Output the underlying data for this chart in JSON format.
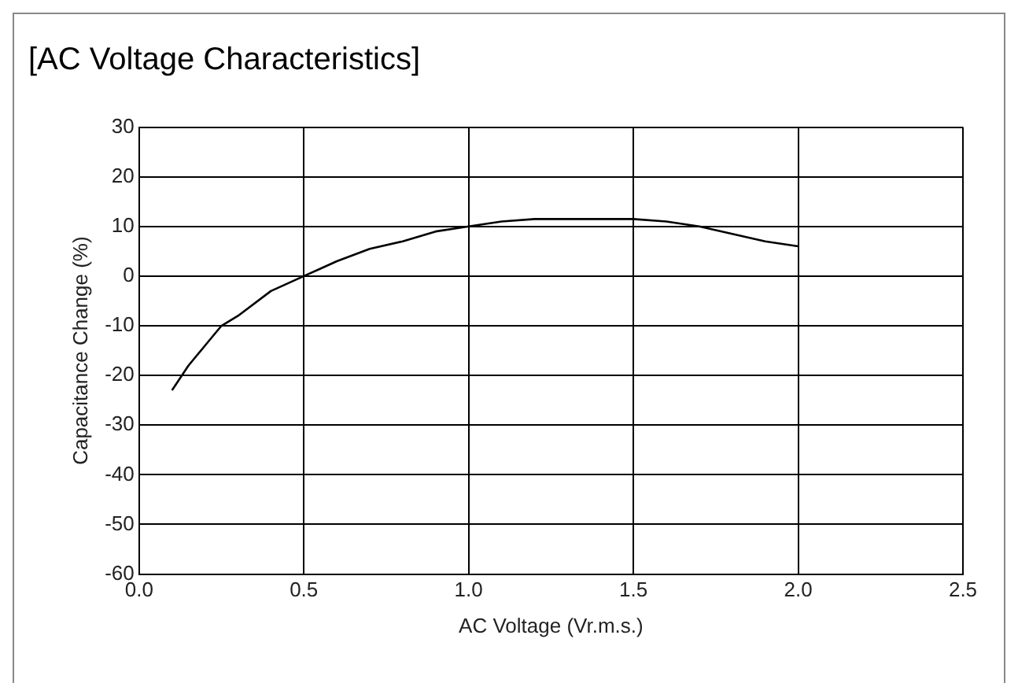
{
  "chart_data": {
    "type": "line",
    "title": "[AC Voltage Characteristics]",
    "xlabel": "AC Voltage (Vr.m.s.)",
    "ylabel": "Capacitance Change (%)",
    "x": [
      0.1,
      0.15,
      0.2,
      0.25,
      0.3,
      0.4,
      0.5,
      0.55,
      0.6,
      0.7,
      0.8,
      0.9,
      1.0,
      1.1,
      1.2,
      1.3,
      1.4,
      1.5,
      1.6,
      1.7,
      1.8,
      1.9,
      2.0
    ],
    "series": [
      {
        "color": "#000000",
        "values": [
          -23,
          -18,
          -14,
          -10,
          -8,
          -3,
          0,
          1.5,
          3,
          5.5,
          7,
          9,
          10,
          11,
          11.5,
          11.5,
          11.5,
          11.5,
          11,
          10,
          8.5,
          7,
          6
        ]
      }
    ],
    "xlim": [
      0,
      2.5
    ],
    "xticks": [
      {
        "value": 0,
        "label": "0.0"
      },
      {
        "value": 0.5,
        "label": "0.5"
      },
      {
        "value": 1,
        "label": "1.0"
      },
      {
        "value": 1.5,
        "label": "1.5"
      },
      {
        "value": 2,
        "label": "2.0"
      },
      {
        "value": 2.5,
        "label": "2.5"
      }
    ],
    "ylim": [
      -60,
      30
    ],
    "yticks": [
      -60,
      -50,
      -40,
      -30,
      -20,
      -10,
      0,
      10,
      20,
      30
    ],
    "grid": true,
    "legend": false,
    "marker": "none",
    "line_style": "solid"
  }
}
